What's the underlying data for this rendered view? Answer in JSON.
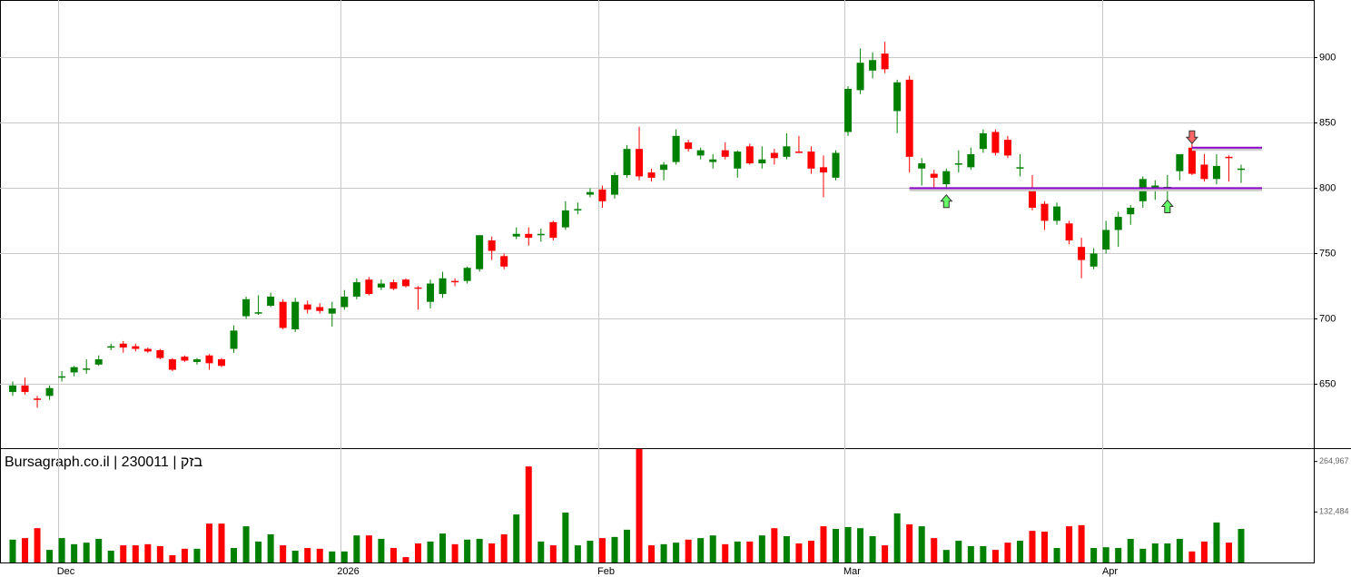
{
  "chart_data": {
    "type": "candlestick",
    "title": "Bursagraph.co.il | 230011 | בזק",
    "x": [
      null,
      null,
      null,
      null,
      "Dec",
      null,
      null,
      null,
      null,
      null,
      null,
      null,
      null,
      null,
      null,
      null,
      null,
      null,
      null,
      null,
      null,
      null,
      null,
      null,
      null,
      null,
      null,
      "2026",
      null,
      null,
      null,
      null,
      null,
      null,
      null,
      null,
      null,
      null,
      null,
      null,
      null,
      null,
      null,
      null,
      null,
      null,
      null,
      null,
      "Feb",
      null,
      null,
      null,
      null,
      null,
      null,
      null,
      null,
      null,
      null,
      null,
      null,
      null,
      null,
      null,
      null,
      null,
      null,
      null,
      "Mar",
      null,
      null,
      null,
      null,
      null,
      null,
      null,
      null,
      null,
      null,
      null,
      null,
      null,
      null,
      null,
      null,
      null,
      null,
      null,
      null,
      "Apr",
      null,
      null,
      null,
      null,
      null,
      null,
      null,
      null,
      null,
      null,
      null
    ],
    "open": [
      644,
      649,
      639,
      641,
      655,
      659,
      661,
      665,
      678,
      681,
      679,
      677,
      676,
      669,
      671,
      667,
      672,
      669,
      677,
      702,
      704,
      710,
      713,
      692,
      711,
      709,
      704,
      709,
      717,
      730,
      724,
      728,
      730,
      724,
      713,
      719,
      729,
      729,
      738,
      760,
      748,
      763,
      765,
      764,
      774,
      770,
      783,
      795,
      799,
      795,
      810,
      830,
      812,
      814,
      820,
      835,
      825,
      820,
      829,
      815,
      832,
      819,
      827,
      824,
      828,
      828,
      816,
      808,
      843,
      875,
      890,
      903,
      859,
      883,
      815,
      811,
      803,
      818,
      816,
      830,
      843,
      837,
      815,
      800,
      788,
      775,
      773,
      755,
      740,
      753,
      768,
      780,
      790,
      800,
      800,
      813,
      831,
      818,
      807,
      824,
      814
    ],
    "high": [
      652,
      655,
      641,
      649,
      660,
      664,
      669,
      672,
      681,
      683,
      681,
      678,
      677,
      670,
      672,
      670,
      673,
      670,
      695,
      717,
      718,
      720,
      715,
      716,
      714,
      712,
      713,
      722,
      731,
      732,
      730,
      730,
      731,
      725,
      730,
      736,
      731,
      740,
      764,
      763,
      750,
      770,
      770,
      769,
      775,
      790,
      789,
      800,
      802,
      812,
      833,
      847,
      815,
      820,
      845,
      837,
      831,
      826,
      835,
      829,
      834,
      832,
      830,
      842,
      840,
      832,
      825,
      829,
      878,
      907,
      904,
      912,
      883,
      886,
      823,
      814,
      815,
      829,
      831,
      845,
      845,
      840,
      826,
      810,
      790,
      789,
      775,
      762,
      754,
      775,
      782,
      787,
      809,
      806,
      810,
      826,
      834,
      826,
      826,
      825,
      818
    ],
    "low": [
      641,
      642,
      632,
      638,
      652,
      656,
      658,
      664,
      676,
      674,
      675,
      674,
      669,
      660,
      667,
      665,
      661,
      663,
      674,
      700,
      703,
      709,
      692,
      690,
      704,
      704,
      694,
      707,
      715,
      718,
      722,
      722,
      724,
      707,
      708,
      716,
      725,
      727,
      736,
      745,
      738,
      761,
      756,
      759,
      760,
      768,
      780,
      793,
      785,
      792,
      808,
      806,
      805,
      806,
      818,
      828,
      822,
      815,
      822,
      808,
      818,
      815,
      818,
      822,
      827,
      811,
      793,
      806,
      840,
      872,
      884,
      888,
      842,
      812,
      802,
      798,
      800,
      812,
      814,
      827,
      825,
      823,
      809,
      783,
      768,
      772,
      757,
      731,
      738,
      750,
      755,
      772,
      785,
      791,
      790,
      806,
      810,
      805,
      803,
      805,
      804
    ],
    "close": [
      649,
      644,
      638,
      647,
      656,
      663,
      662,
      669,
      679,
      678,
      677,
      675,
      670,
      661,
      668,
      669,
      666,
      664,
      691,
      715,
      705,
      717,
      693,
      713,
      707,
      706,
      708,
      717,
      728,
      719,
      727,
      723,
      725,
      723,
      727,
      731,
      728,
      739,
      764,
      752,
      740,
      765,
      762,
      765,
      762,
      783,
      784,
      797,
      790,
      810,
      830,
      809,
      808,
      818,
      840,
      830,
      829,
      822,
      824,
      828,
      819,
      822,
      823,
      832,
      827,
      815,
      812,
      827,
      876,
      896,
      898,
      891,
      881,
      824,
      819,
      808,
      813,
      819,
      826,
      842,
      827,
      825,
      816,
      785,
      775,
      786,
      760,
      745,
      750,
      768,
      778,
      785,
      807,
      802,
      801,
      826,
      811,
      807,
      817,
      823,
      815
    ],
    "volume": [
      60000,
      64000,
      90000,
      33000,
      64000,
      48000,
      52000,
      62000,
      31000,
      45000,
      45000,
      48000,
      43000,
      19000,
      36000,
      36000,
      102000,
      102000,
      38000,
      95000,
      55000,
      74000,
      45000,
      31000,
      38000,
      36000,
      29000,
      29000,
      71000,
      71000,
      62000,
      38000,
      14000,
      50000,
      55000,
      76000,
      48000,
      60000,
      62000,
      50000,
      74000,
      126000,
      252000,
      55000,
      45000,
      131000,
      45000,
      57000,
      64000,
      67000,
      86000,
      298000,
      45000,
      48000,
      52000,
      60000,
      64000,
      71000,
      48000,
      55000,
      55000,
      71000,
      90000,
      69000,
      50000,
      57000,
      95000,
      88000,
      93000,
      90000,
      69000,
      45000,
      129000,
      100000,
      95000,
      64000,
      33000,
      57000,
      43000,
      43000,
      33000,
      52000,
      57000,
      83000,
      81000,
      38000,
      95000,
      98000,
      38000,
      40000,
      38000,
      62000,
      36000,
      50000,
      50000,
      62000,
      29000,
      55000,
      105000,
      52000,
      88000
    ],
    "up_color": "#008000",
    "down_color": "#ff0000",
    "ylim": [
      601,
      944
    ],
    "yticks": [
      650,
      700,
      750,
      800,
      850,
      900
    ],
    "y2lim": [
      0,
      300000
    ],
    "y2ticks": [
      {
        "value": 132484,
        "label": "132,484"
      },
      {
        "value": 264967,
        "label": "264,967"
      }
    ],
    "grid": true,
    "levels": [
      {
        "value": 800,
        "from": 73
      },
      {
        "value": 831,
        "from": 96
      }
    ],
    "level_color": "#8b00c8",
    "buy_signals": [
      {
        "index": 76,
        "value": 790
      },
      {
        "index": 94,
        "value": 786
      }
    ],
    "sell_signals": [
      {
        "index": 96,
        "value": 839
      }
    ]
  }
}
